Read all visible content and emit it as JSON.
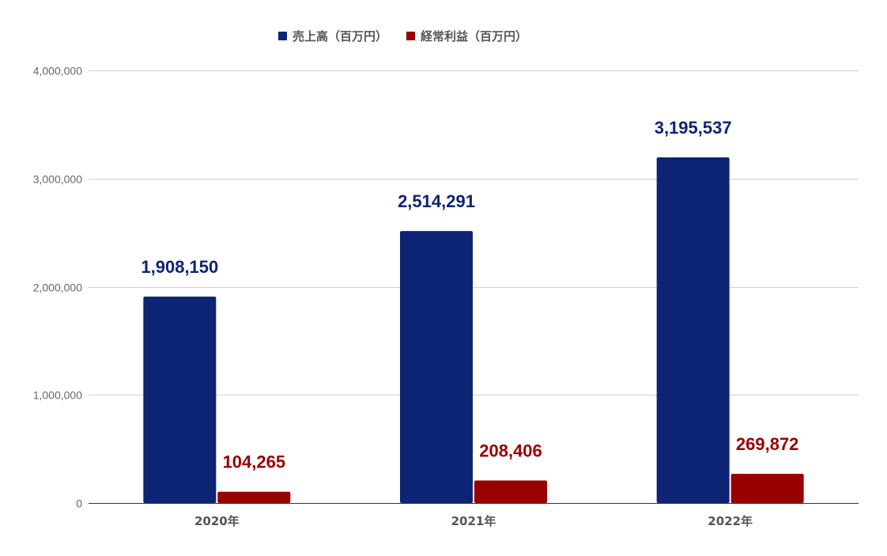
{
  "chart_data": {
    "type": "bar",
    "categories": [
      "2020年",
      "2021年",
      "2022年"
    ],
    "series": [
      {
        "name": "売上高（百万円）",
        "values": [
          1908150,
          2514291,
          3195537
        ],
        "labels": [
          "1,908,150",
          "2,514,291",
          "3,195,537"
        ],
        "color": "#0d2475"
      },
      {
        "name": "経常利益（百万円）",
        "values": [
          104265,
          208406,
          269872
        ],
        "labels": [
          "104,265",
          "208,406",
          "269,872"
        ],
        "color": "#990000"
      }
    ],
    "ylim": [
      0,
      4000000
    ],
    "yticks": [
      0,
      1000000,
      2000000,
      3000000,
      4000000
    ],
    "ytick_labels": [
      "0",
      "1,000,000",
      "2,000,000",
      "3,000,000",
      "4,000,000"
    ],
    "grid": true,
    "legend_position": "top-center",
    "title": "",
    "xlabel": "",
    "ylabel": ""
  }
}
